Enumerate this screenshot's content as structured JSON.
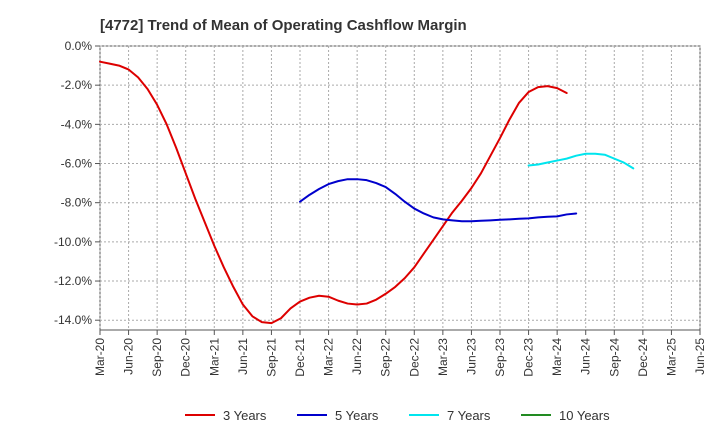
{
  "chart_data": {
    "type": "line",
    "title": "[4772]  Trend of Mean of Operating Cashflow Margin",
    "xlabel": "",
    "ylabel": "",
    "ylim": [
      -14.5,
      0
    ],
    "yticks": [
      0,
      -2,
      -4,
      -6,
      -8,
      -10,
      -12,
      -14
    ],
    "ytick_labels": [
      "0.0%",
      "-2.0%",
      "-4.0%",
      "-6.0%",
      "-8.0%",
      "-10.0%",
      "-12.0%",
      "-14.0%"
    ],
    "x_labels": [
      "Mar-20",
      "Jun-20",
      "Sep-20",
      "Dec-20",
      "Mar-21",
      "Jun-21",
      "Sep-21",
      "Dec-21",
      "Mar-22",
      "Jun-22",
      "Sep-22",
      "Dec-22",
      "Mar-23",
      "Jun-23",
      "Sep-23",
      "Dec-23",
      "Mar-24",
      "Jun-24",
      "Sep-24",
      "Dec-24",
      "Mar-25",
      "Jun-25"
    ],
    "grid": true,
    "grid_style": "dotted",
    "legend_position": "bottom",
    "series": [
      {
        "name": "3 Years",
        "color": "#dd0000",
        "points": [
          [
            "Mar-20",
            -0.8
          ],
          [
            "Apr-20",
            -0.9
          ],
          [
            "May-20",
            -1.0
          ],
          [
            "Jun-20",
            -1.2
          ],
          [
            "Jul-20",
            -1.6
          ],
          [
            "Aug-20",
            -2.2
          ],
          [
            "Sep-20",
            -3.0
          ],
          [
            "Oct-20",
            -4.0
          ],
          [
            "Nov-20",
            -5.2
          ],
          [
            "Dec-20",
            -6.5
          ],
          [
            "Jan-21",
            -7.8
          ],
          [
            "Feb-21",
            -9.0
          ],
          [
            "Mar-21",
            -10.2
          ],
          [
            "Apr-21",
            -11.3
          ],
          [
            "May-21",
            -12.3
          ],
          [
            "Jun-21",
            -13.2
          ],
          [
            "Jul-21",
            -13.8
          ],
          [
            "Aug-21",
            -14.1
          ],
          [
            "Sep-21",
            -14.15
          ],
          [
            "Oct-21",
            -13.9
          ],
          [
            "Nov-21",
            -13.4
          ],
          [
            "Dec-21",
            -13.05
          ],
          [
            "Jan-22",
            -12.85
          ],
          [
            "Feb-22",
            -12.75
          ],
          [
            "Mar-22",
            -12.8
          ],
          [
            "Apr-22",
            -13.0
          ],
          [
            "May-22",
            -13.15
          ],
          [
            "Jun-22",
            -13.2
          ],
          [
            "Jul-22",
            -13.15
          ],
          [
            "Aug-22",
            -12.95
          ],
          [
            "Sep-22",
            -12.65
          ],
          [
            "Oct-22",
            -12.3
          ],
          [
            "Nov-22",
            -11.85
          ],
          [
            "Dec-22",
            -11.3
          ],
          [
            "Jan-23",
            -10.6
          ],
          [
            "Feb-23",
            -9.9
          ],
          [
            "Mar-23",
            -9.2
          ],
          [
            "Apr-23",
            -8.5
          ],
          [
            "May-23",
            -7.9
          ],
          [
            "Jun-23",
            -7.25
          ],
          [
            "Jul-23",
            -6.5
          ],
          [
            "Aug-23",
            -5.6
          ],
          [
            "Sep-23",
            -4.7
          ],
          [
            "Oct-23",
            -3.75
          ],
          [
            "Nov-23",
            -2.9
          ],
          [
            "Dec-23",
            -2.35
          ],
          [
            "Jan-24",
            -2.1
          ],
          [
            "Feb-24",
            -2.05
          ],
          [
            "Mar-24",
            -2.15
          ],
          [
            "Apr-24",
            -2.4
          ]
        ]
      },
      {
        "name": "5 Years",
        "color": "#0000cc",
        "points": [
          [
            "Dec-21",
            -7.95
          ],
          [
            "Jan-22",
            -7.6
          ],
          [
            "Feb-22",
            -7.3
          ],
          [
            "Mar-22",
            -7.05
          ],
          [
            "Apr-22",
            -6.9
          ],
          [
            "May-22",
            -6.8
          ],
          [
            "Jun-22",
            -6.8
          ],
          [
            "Jul-22",
            -6.85
          ],
          [
            "Aug-22",
            -7.0
          ],
          [
            "Sep-22",
            -7.2
          ],
          [
            "Oct-22",
            -7.55
          ],
          [
            "Nov-22",
            -7.95
          ],
          [
            "Dec-22",
            -8.3
          ],
          [
            "Jan-23",
            -8.55
          ],
          [
            "Feb-23",
            -8.75
          ],
          [
            "Mar-23",
            -8.85
          ],
          [
            "Apr-23",
            -8.9
          ],
          [
            "May-23",
            -8.95
          ],
          [
            "Jun-23",
            -8.95
          ],
          [
            "Jul-23",
            -8.92
          ],
          [
            "Aug-23",
            -8.9
          ],
          [
            "Sep-23",
            -8.87
          ],
          [
            "Oct-23",
            -8.85
          ],
          [
            "Nov-23",
            -8.82
          ],
          [
            "Dec-23",
            -8.8
          ],
          [
            "Jan-24",
            -8.75
          ],
          [
            "Feb-24",
            -8.72
          ],
          [
            "Mar-24",
            -8.7
          ],
          [
            "Apr-24",
            -8.6
          ],
          [
            "May-24",
            -8.55
          ]
        ]
      },
      {
        "name": "7 Years",
        "color": "#00e5ee",
        "points": [
          [
            "Dec-23",
            -6.1
          ],
          [
            "Jan-24",
            -6.05
          ],
          [
            "Feb-24",
            -5.95
          ],
          [
            "Mar-24",
            -5.85
          ],
          [
            "Apr-24",
            -5.75
          ],
          [
            "May-24",
            -5.6
          ],
          [
            "Jun-24",
            -5.5
          ],
          [
            "Jul-24",
            -5.5
          ],
          [
            "Aug-24",
            -5.55
          ],
          [
            "Sep-24",
            -5.75
          ],
          [
            "Oct-24",
            -5.95
          ],
          [
            "Nov-24",
            -6.25
          ]
        ]
      },
      {
        "name": "10 Years",
        "color": "#228B22",
        "points": []
      }
    ]
  }
}
